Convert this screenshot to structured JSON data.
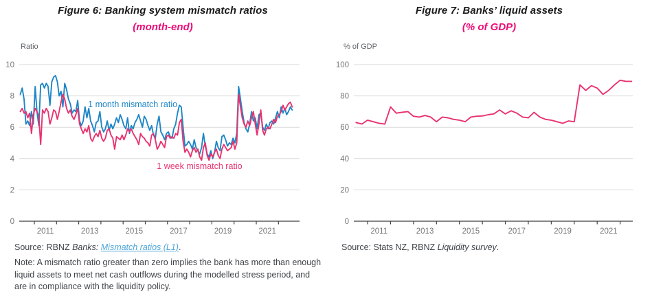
{
  "figures": [
    {
      "title": "Figure 6: Banking system mismatch ratios",
      "subtitle": "(month-end)",
      "ylabel": "Ratio",
      "source": {
        "prefix": "Source: RBNZ ",
        "italic": "Banks: ",
        "link": "Mismatch ratios (L1)",
        "suffix": "."
      },
      "note": "Note: A mismatch ratio greater than zero implies the bank has more than enough liquid assets to meet net cash outflows during the modelled stress period, and are in compliance with the liquidity policy."
    },
    {
      "title": "Figure 7: Banks’ liquid assets",
      "subtitle": "(% of GDP)",
      "ylabel": "% of GDP",
      "source": {
        "prefix": "Source: Stats NZ, RBNZ ",
        "italic": "Liquidity survey",
        "suffix": "."
      }
    }
  ],
  "colors": {
    "blue_line": "#1e86c6",
    "pink_line": "#e8336f",
    "pink_accent": "#eb0d79",
    "link_blue": "#4da6d9",
    "grid": "#d9d9d9",
    "axis": "#3f3f3f",
    "tick_text": "#767676",
    "body_text": "#3f4448"
  },
  "chart_data": [
    {
      "type": "line",
      "title": "Figure 6: Banking system mismatch ratios",
      "subtitle": "(month-end)",
      "xlabel": "",
      "ylabel": "Ratio",
      "ylim": [
        0,
        10
      ],
      "yticks": [
        0,
        2,
        4,
        6,
        8,
        10
      ],
      "xlim": [
        2010.32,
        2022.95
      ],
      "xticks": [
        2011,
        2012,
        2013,
        2014,
        2015,
        2016,
        2017,
        2018,
        2019,
        2020,
        2021,
        2022
      ],
      "xtick_labels": [
        {
          "pos": 2011.5,
          "label": "2011"
        },
        {
          "pos": 2013.5,
          "label": "2013"
        },
        {
          "pos": 2015.5,
          "label": "2015"
        },
        {
          "pos": 2017.5,
          "label": "2017"
        },
        {
          "pos": 2019.5,
          "label": "2019"
        },
        {
          "pos": 2021.5,
          "label": "2021"
        }
      ],
      "grid": true,
      "legend_position": "inline-annotations",
      "series": [
        {
          "name": "1 month mismatch ratio",
          "color": "#1e86c6",
          "x_start": 2010.37,
          "x_step": 0.08333,
          "values": [
            8.1,
            8.5,
            7.8,
            6.2,
            6.4,
            6.1,
            7.0,
            6.2,
            8.6,
            7.0,
            6.1,
            8.7,
            8.8,
            8.5,
            8.8,
            8.6,
            7.4,
            8.9,
            9.2,
            9.3,
            8.9,
            8.0,
            8.3,
            7.3,
            8.8,
            8.4,
            7.8,
            7.5,
            6.9,
            7.1,
            7.0,
            7.7,
            6.4,
            6.1,
            6.4,
            7.3,
            6.6,
            7.2,
            6.4,
            6.1,
            5.7,
            6.3,
            6.4,
            7.0,
            6.0,
            5.7,
            5.9,
            6.4,
            5.8,
            6.2,
            5.9,
            6.2,
            6.6,
            6.3,
            6.8,
            6.5,
            6.1,
            5.9,
            6.6,
            5.6,
            6.1,
            5.9,
            6.3,
            6.5,
            6.8,
            6.4,
            6.0,
            6.7,
            6.5,
            6.1,
            5.8,
            6.1,
            5.5,
            5.3,
            6.2,
            6.7,
            5.7,
            5.5,
            5.2,
            5.6,
            5.7,
            5.4,
            5.3,
            5.9,
            6.2,
            6.9,
            7.4,
            7.3,
            6.0,
            4.8,
            4.9,
            5.1,
            4.9,
            4.6,
            5.2,
            4.7,
            4.5,
            4.3,
            4.7,
            5.6,
            4.8,
            4.3,
            4.1,
            4.5,
            4.0,
            4.4,
            5.1,
            4.7,
            4.5,
            5.4,
            5.5,
            5.2,
            4.8,
            5.0,
            4.9,
            5.3,
            5.0,
            5.6,
            8.6,
            7.8,
            7.0,
            6.3,
            5.9,
            5.7,
            6.2,
            7.0,
            6.4,
            6.6,
            5.9,
            6.8,
            6.9,
            6.0,
            5.8,
            6.2,
            5.9,
            6.3,
            6.4,
            6.2,
            6.6,
            7.0,
            6.6,
            7.3,
            6.9,
            7.2,
            6.8,
            7.0,
            7.3,
            7.1
          ]
        },
        {
          "name": "1 week mismatch ratio",
          "color": "#e8336f",
          "x_start": 2010.37,
          "x_step": 0.08333,
          "values": [
            7.0,
            7.2,
            6.9,
            7.0,
            6.6,
            6.9,
            5.6,
            6.8,
            7.2,
            7.0,
            6.7,
            4.9,
            7.1,
            6.9,
            7.2,
            7.0,
            6.2,
            6.6,
            7.1,
            7.0,
            6.5,
            7.0,
            7.6,
            8.1,
            7.8,
            7.2,
            6.9,
            7.1,
            6.7,
            6.5,
            6.8,
            7.2,
            6.2,
            5.9,
            5.6,
            5.9,
            5.7,
            6.1,
            5.3,
            5.1,
            5.4,
            5.6,
            5.4,
            5.8,
            5.3,
            5.1,
            5.3,
            5.8,
            5.9,
            5.5,
            5.3,
            4.6,
            5.4,
            5.3,
            5.2,
            5.5,
            5.2,
            5.5,
            5.9,
            5.7,
            5.9,
            5.6,
            5.4,
            5.2,
            4.9,
            5.6,
            5.4,
            5.3,
            5.1,
            5.0,
            4.8,
            5.5,
            5.6,
            5.2,
            4.6,
            4.8,
            5.1,
            4.9,
            4.7,
            5.4,
            5.5,
            5.3,
            5.4,
            5.3,
            5.6,
            5.5,
            6.3,
            6.5,
            5.1,
            4.4,
            4.6,
            4.4,
            4.1,
            4.5,
            4.7,
            4.4,
            4.6,
            4.1,
            3.9,
            4.7,
            5.0,
            4.2,
            3.9,
            4.3,
            4.1,
            4.4,
            4.6,
            4.2,
            4.0,
            4.6,
            4.9,
            4.7,
            4.5,
            4.6,
            4.7,
            5.1,
            4.6,
            5.0,
            8.1,
            7.3,
            6.6,
            6.2,
            6.0,
            6.4,
            6.1,
            6.6,
            7.0,
            6.2,
            5.5,
            6.2,
            7.1,
            5.8,
            5.5,
            5.9,
            6.0,
            5.9,
            6.2,
            6.5,
            6.3,
            6.7,
            6.8,
            7.0,
            7.4,
            7.1,
            7.3,
            7.5,
            7.6,
            7.3
          ]
        }
      ],
      "annotations": [
        {
          "x": 2013.42,
          "y": 7.28,
          "text": "1 month mismatch ratio",
          "color": "#1e86c6"
        },
        {
          "x": 2016.52,
          "y": 3.33,
          "text": "1 week mismatch ratio",
          "color": "#e8336f"
        }
      ]
    },
    {
      "type": "line",
      "title": "Figure 7: Banks’ liquid assets",
      "subtitle": "(% of GDP)",
      "xlabel": "",
      "ylabel": "% of GDP",
      "ylim": [
        0,
        100
      ],
      "yticks": [
        0,
        20,
        40,
        60,
        80,
        100
      ],
      "xlim": [
        2010.4,
        2022.55
      ],
      "xticks": [
        2011,
        2012,
        2013,
        2014,
        2015,
        2016,
        2017,
        2018,
        2019,
        2020,
        2021,
        2022
      ],
      "xtick_labels": [
        {
          "pos": 2011.5,
          "label": "2011"
        },
        {
          "pos": 2013.5,
          "label": "2013"
        },
        {
          "pos": 2015.5,
          "label": "2015"
        },
        {
          "pos": 2017.5,
          "label": "2017"
        },
        {
          "pos": 2019.5,
          "label": "2019"
        },
        {
          "pos": 2021.5,
          "label": "2021"
        }
      ],
      "grid": true,
      "legend_position": "none",
      "series": [
        {
          "name": "Banks liquid assets (% of GDP)",
          "color": "#e8336f",
          "x_start": 2010.5,
          "x_step": 0.25,
          "values": [
            63,
            62,
            64.5,
            63.5,
            62.5,
            62,
            73,
            69,
            69.5,
            70,
            67,
            66.5,
            67.5,
            66.5,
            63.5,
            66.5,
            66,
            65,
            64.5,
            63.5,
            66.5,
            67,
            67.2,
            68,
            68.5,
            71,
            68.5,
            70.5,
            69,
            66.5,
            66,
            69.5,
            66.5,
            65,
            64.5,
            63.5,
            62.5,
            64,
            63.5,
            87,
            83.5,
            86.5,
            85,
            81,
            83.5,
            87,
            90,
            89.3,
            89.3
          ]
        }
      ],
      "annotations": []
    }
  ]
}
